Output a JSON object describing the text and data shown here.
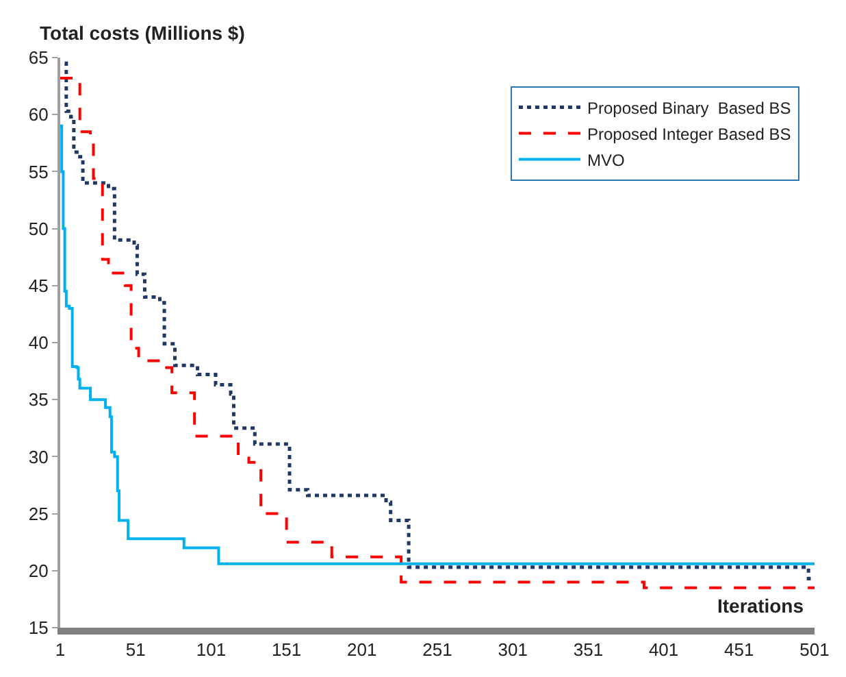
{
  "chart_data": {
    "type": "step",
    "xlabel": "Iterations",
    "ylabel": "Total costs (Millions $)",
    "xlim": [
      1,
      501
    ],
    "xticks": [
      1,
      51,
      101,
      151,
      201,
      251,
      301,
      351,
      401,
      451,
      501
    ],
    "ylim": [
      15,
      65
    ],
    "yticks": [
      15,
      20,
      25,
      30,
      35,
      40,
      45,
      50,
      55,
      60,
      65
    ],
    "legend": "top right",
    "marker": "none",
    "series": [
      {
        "name": "Proposed Binary  Based BS",
        "color": "#1f3864",
        "line_style": "dotted",
        "x": [
          4,
          5,
          8,
          10,
          14,
          16,
          33,
          37,
          50,
          52,
          57,
          67,
          70,
          77,
          92,
          104,
          114,
          116,
          130,
          153,
          165,
          217,
          220,
          232,
          497,
          501
        ],
        "values": [
          64.5,
          60.3,
          59.8,
          56.7,
          56.3,
          54.0,
          53.5,
          49.0,
          48.5,
          46.0,
          44.0,
          43.5,
          39.9,
          38.0,
          37.2,
          36.3,
          35.5,
          32.5,
          31.1,
          27.1,
          26.6,
          26.0,
          24.4,
          20.3,
          19.3,
          19.3
        ]
      },
      {
        "name": "Proposed Integer Based BS",
        "color": "#ff0000",
        "line_style": "dashed",
        "x": [
          1,
          14,
          21,
          23,
          27,
          29,
          33,
          44,
          48,
          53,
          69,
          75,
          90,
          119,
          126,
          134,
          151,
          181,
          227,
          388,
          501
        ],
        "values": [
          63.2,
          58.5,
          58.0,
          54.4,
          54.0,
          47.3,
          46.1,
          45.0,
          39.5,
          38.4,
          37.8,
          35.6,
          31.8,
          30.0,
          29.5,
          25.0,
          22.5,
          21.2,
          19.0,
          18.5,
          18.5
        ]
      },
      {
        "name": "MVO",
        "color": "#00b0f0",
        "line_style": "solid",
        "x": [
          1,
          2,
          3,
          4,
          5,
          7,
          9,
          12,
          13,
          14,
          21,
          31,
          34,
          35,
          37,
          39,
          40,
          46,
          83,
          106,
          501
        ],
        "values": [
          59.0,
          55.0,
          50.0,
          44.5,
          43.2,
          43.0,
          37.9,
          37.8,
          36.8,
          36.0,
          35.0,
          34.3,
          33.5,
          30.4,
          30.0,
          27.0,
          24.4,
          22.8,
          22.0,
          20.6,
          20.6
        ]
      }
    ]
  }
}
